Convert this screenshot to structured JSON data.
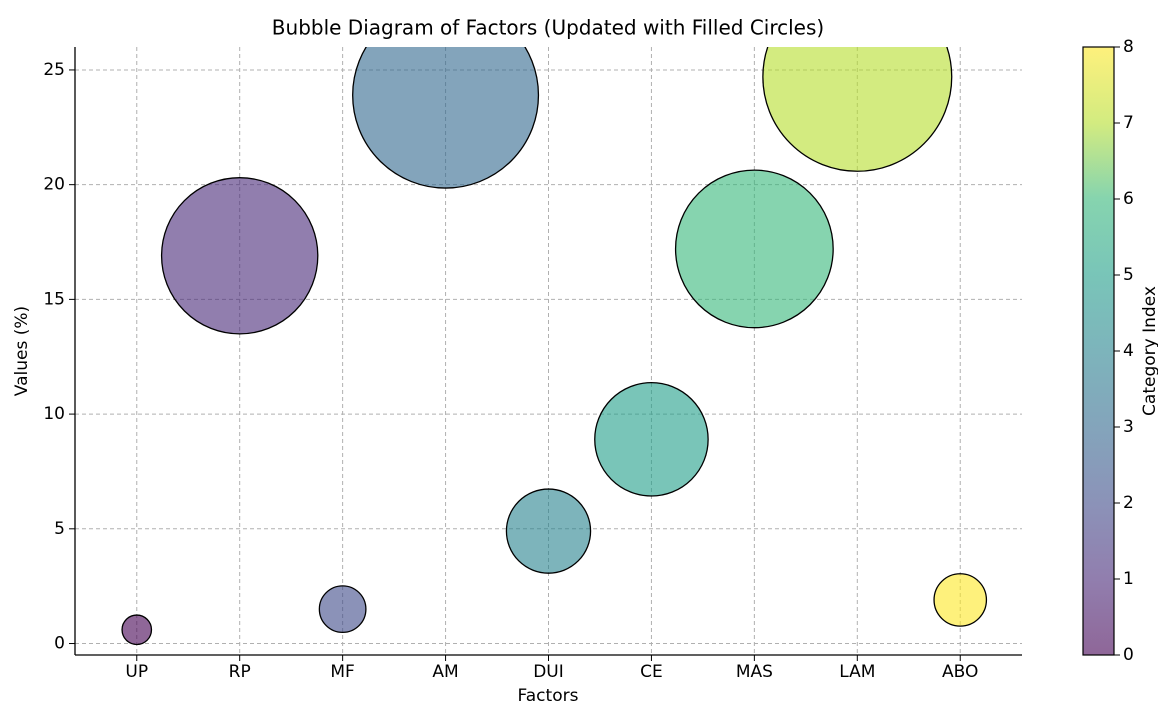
{
  "chart_data": {
    "type": "scatter",
    "title": "Bubble Diagram of Factors (Updated with Filled Circles)",
    "x_label": "Factors",
    "y_label": "Values (%)",
    "categories": [
      "UP",
      "RP",
      "MF",
      "AM",
      "DUI",
      "CE",
      "MAS",
      "LAM",
      "ABO"
    ],
    "values": [
      0.6,
      16.9,
      1.5,
      23.9,
      4.9,
      8.9,
      17.2,
      24.7,
      1.9
    ],
    "colors": [
      "#440154",
      "#482878",
      "#3e4a89",
      "#31688e",
      "#26828e",
      "#1f9e89",
      "#35b779",
      "#b5de2b",
      "#fde725"
    ],
    "ylim": [
      -0.5,
      26
    ],
    "yticks": [
      0,
      5,
      10,
      15,
      20,
      25
    ],
    "grid": true,
    "colorbar": {
      "label": "Category Index",
      "lim": [
        0,
        8
      ],
      "ticks": [
        0,
        1,
        2,
        3,
        4,
        5,
        6,
        7,
        8
      ]
    }
  }
}
